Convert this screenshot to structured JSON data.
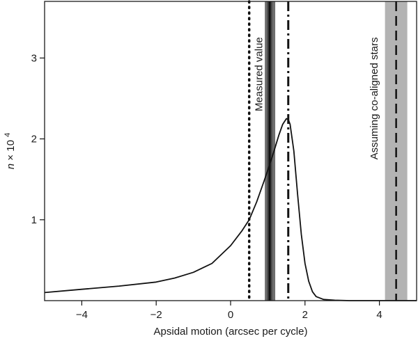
{
  "chart_data": {
    "type": "line",
    "xlabel": "Apsidal motion (arcsec per cycle)",
    "ylabel": "n × 10",
    "ylabel_exponent": "4",
    "xlim": [
      -5,
      5.0
    ],
    "ylim": [
      0,
      3.7
    ],
    "xticks": [
      -4,
      -2,
      0,
      2,
      4
    ],
    "xtick_labels": [
      "−4",
      "−2",
      "0",
      "2",
      "4"
    ],
    "yticks": [
      1,
      2,
      3
    ],
    "ytick_labels": [
      "1",
      "2",
      "3"
    ],
    "grid": false,
    "series": [
      {
        "x": [
          -5.0,
          -4.0,
          -3.0,
          -2.0,
          -1.5,
          -1.0,
          -0.5,
          0.0,
          0.3,
          0.5,
          0.7,
          0.9,
          1.1,
          1.2,
          1.3,
          1.4,
          1.5,
          1.55,
          1.6,
          1.7,
          1.8,
          1.9,
          2.0,
          2.1,
          2.2,
          2.3,
          2.5,
          2.8,
          3.2,
          5.0
        ],
        "y": [
          0.1,
          0.14,
          0.18,
          0.23,
          0.28,
          0.35,
          0.46,
          0.68,
          0.86,
          1.0,
          1.22,
          1.48,
          1.75,
          1.9,
          2.05,
          2.18,
          2.25,
          2.24,
          2.18,
          1.85,
          1.32,
          0.82,
          0.46,
          0.24,
          0.11,
          0.05,
          0.015,
          0.005,
          0.0,
          0.0
        ]
      }
    ],
    "vertical_lines": [
      {
        "kind": "dotted",
        "x": 0.5
      },
      {
        "kind": "measured",
        "x": 1.05,
        "band": [
          0.92,
          1.2
        ],
        "inner_band": [
          0.98,
          1.12
        ]
      },
      {
        "kind": "dashdot",
        "x": 1.55
      },
      {
        "kind": "coaligned",
        "x": 4.45,
        "band": [
          4.15,
          4.75
        ]
      }
    ],
    "annotations": [
      {
        "text": "Measured value",
        "x": 0.85,
        "y": 2.8
      },
      {
        "text": "Assuming co-aligned stars",
        "x": 3.95,
        "y": 2.5
      }
    ]
  }
}
